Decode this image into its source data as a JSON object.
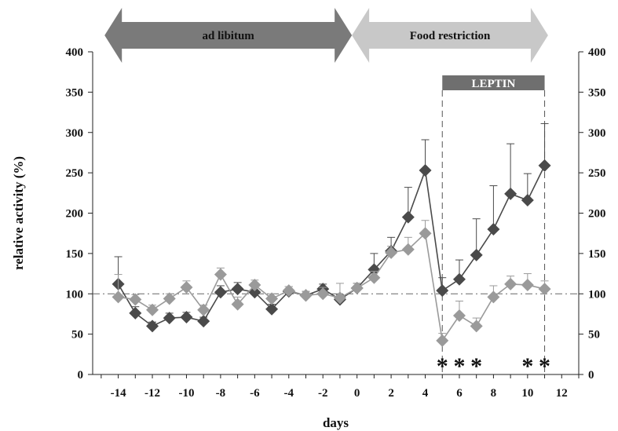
{
  "chart_data": {
    "type": "line",
    "xlabel": "days",
    "ylabel": "relative activity (%)",
    "xlim": [
      -15.5,
      13
    ],
    "ylim": [
      0,
      400
    ],
    "x_ticks": [
      -14,
      -12,
      -10,
      -8,
      -6,
      -4,
      -2,
      0,
      2,
      4,
      6,
      8,
      10,
      12
    ],
    "y_ticks": [
      0,
      50,
      100,
      150,
      200,
      250,
      300,
      350,
      400
    ],
    "secondary_y_axis": true,
    "baseline": 100,
    "phases": [
      {
        "label": "ad libitum",
        "x_start": -14.8,
        "x_end": -0.3,
        "color": "#7a7a7a"
      },
      {
        "label": "Food restriction",
        "x_start": -0.3,
        "x_end": 11.2,
        "color": "#c8c8c8"
      }
    ],
    "treatment": {
      "label": "LEPTIN",
      "x_start": 5,
      "x_end": 11
    },
    "significance_marks": {
      "symbol": "*",
      "x": [
        5,
        6,
        7,
        10,
        11
      ]
    },
    "series": [
      {
        "color": "#4a4a4a",
        "x": [
          -14,
          -13,
          -12,
          -11,
          -10,
          -9,
          -8,
          -7,
          -6,
          -5,
          -4,
          -3,
          -2,
          -1,
          0,
          1,
          2,
          3,
          4,
          5,
          6,
          7,
          8,
          9,
          10,
          11
        ],
        "values": [
          112,
          76,
          60,
          70,
          71,
          66,
          102,
          106,
          102,
          81,
          103,
          98,
          106,
          93,
          107,
          130,
          153,
          195,
          253,
          104,
          118,
          148,
          180,
          224,
          216,
          259
        ],
        "error": [
          34,
          8,
          5,
          6,
          6,
          5,
          8,
          8,
          8,
          6,
          6,
          5,
          6,
          6,
          6,
          20,
          17,
          37,
          38,
          16,
          24,
          45,
          54,
          62,
          33,
          52
        ]
      },
      {
        "color": "#9a9a9a",
        "x": [
          -14,
          -13,
          -12,
          -11,
          -10,
          -9,
          -8,
          -7,
          -6,
          -5,
          -4,
          -3,
          -2,
          -1,
          0,
          1,
          2,
          3,
          4,
          5,
          6,
          7,
          8,
          9,
          10,
          11
        ],
        "values": [
          96,
          93,
          80,
          94,
          108,
          80,
          124,
          87,
          111,
          94,
          104,
          98,
          100,
          95,
          107,
          120,
          151,
          155,
          175,
          42,
          73,
          60,
          96,
          112,
          111,
          106
        ],
        "error": [
          28,
          6,
          6,
          6,
          8,
          6,
          8,
          9,
          6,
          6,
          5,
          5,
          8,
          18,
          6,
          8,
          8,
          15,
          16,
          9,
          18,
          10,
          14,
          10,
          14,
          10
        ]
      }
    ]
  }
}
